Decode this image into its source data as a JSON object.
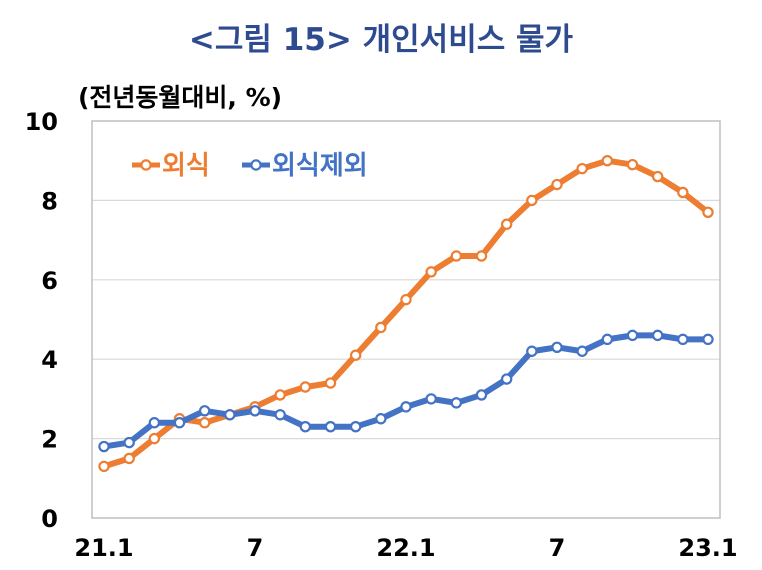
{
  "chart_data": {
    "type": "line",
    "title": "<그림 15> 개인서비스 물가",
    "ylabel": "(전년동월대비, %)",
    "xlabel": "",
    "ylim": [
      0,
      10
    ],
    "yticks": [
      0,
      2,
      4,
      6,
      8,
      10
    ],
    "grid": true,
    "legend_position": "top-left",
    "x": [
      "21.1",
      "21.2",
      "21.3",
      "21.4",
      "21.5",
      "21.6",
      "21.7",
      "21.8",
      "21.9",
      "21.10",
      "21.11",
      "21.12",
      "22.1",
      "22.2",
      "22.3",
      "22.4",
      "22.5",
      "22.6",
      "22.7",
      "22.8",
      "22.9",
      "22.10",
      "22.11",
      "22.12",
      "23.1"
    ],
    "xtick_labels": [
      {
        "index": 0,
        "label": "21.1"
      },
      {
        "index": 6,
        "label": "7"
      },
      {
        "index": 12,
        "label": "22.1"
      },
      {
        "index": 18,
        "label": "7"
      },
      {
        "index": 24,
        "label": "23.1"
      }
    ],
    "series": [
      {
        "name": "외식",
        "color": "#ed7d31",
        "values": [
          1.3,
          1.5,
          2.0,
          2.5,
          2.4,
          2.6,
          2.8,
          3.1,
          3.3,
          3.4,
          4.1,
          4.8,
          5.5,
          6.2,
          6.6,
          6.6,
          7.4,
          8.0,
          8.4,
          8.8,
          9.0,
          8.9,
          8.6,
          8.2,
          7.7
        ]
      },
      {
        "name": "외식제외",
        "color": "#4472c4",
        "values": [
          1.8,
          1.9,
          2.4,
          2.4,
          2.7,
          2.6,
          2.7,
          2.6,
          2.3,
          2.3,
          2.3,
          2.5,
          2.8,
          3.0,
          2.9,
          3.1,
          3.5,
          4.2,
          4.3,
          4.2,
          4.5,
          4.6,
          4.6,
          4.5,
          4.5
        ]
      }
    ]
  }
}
